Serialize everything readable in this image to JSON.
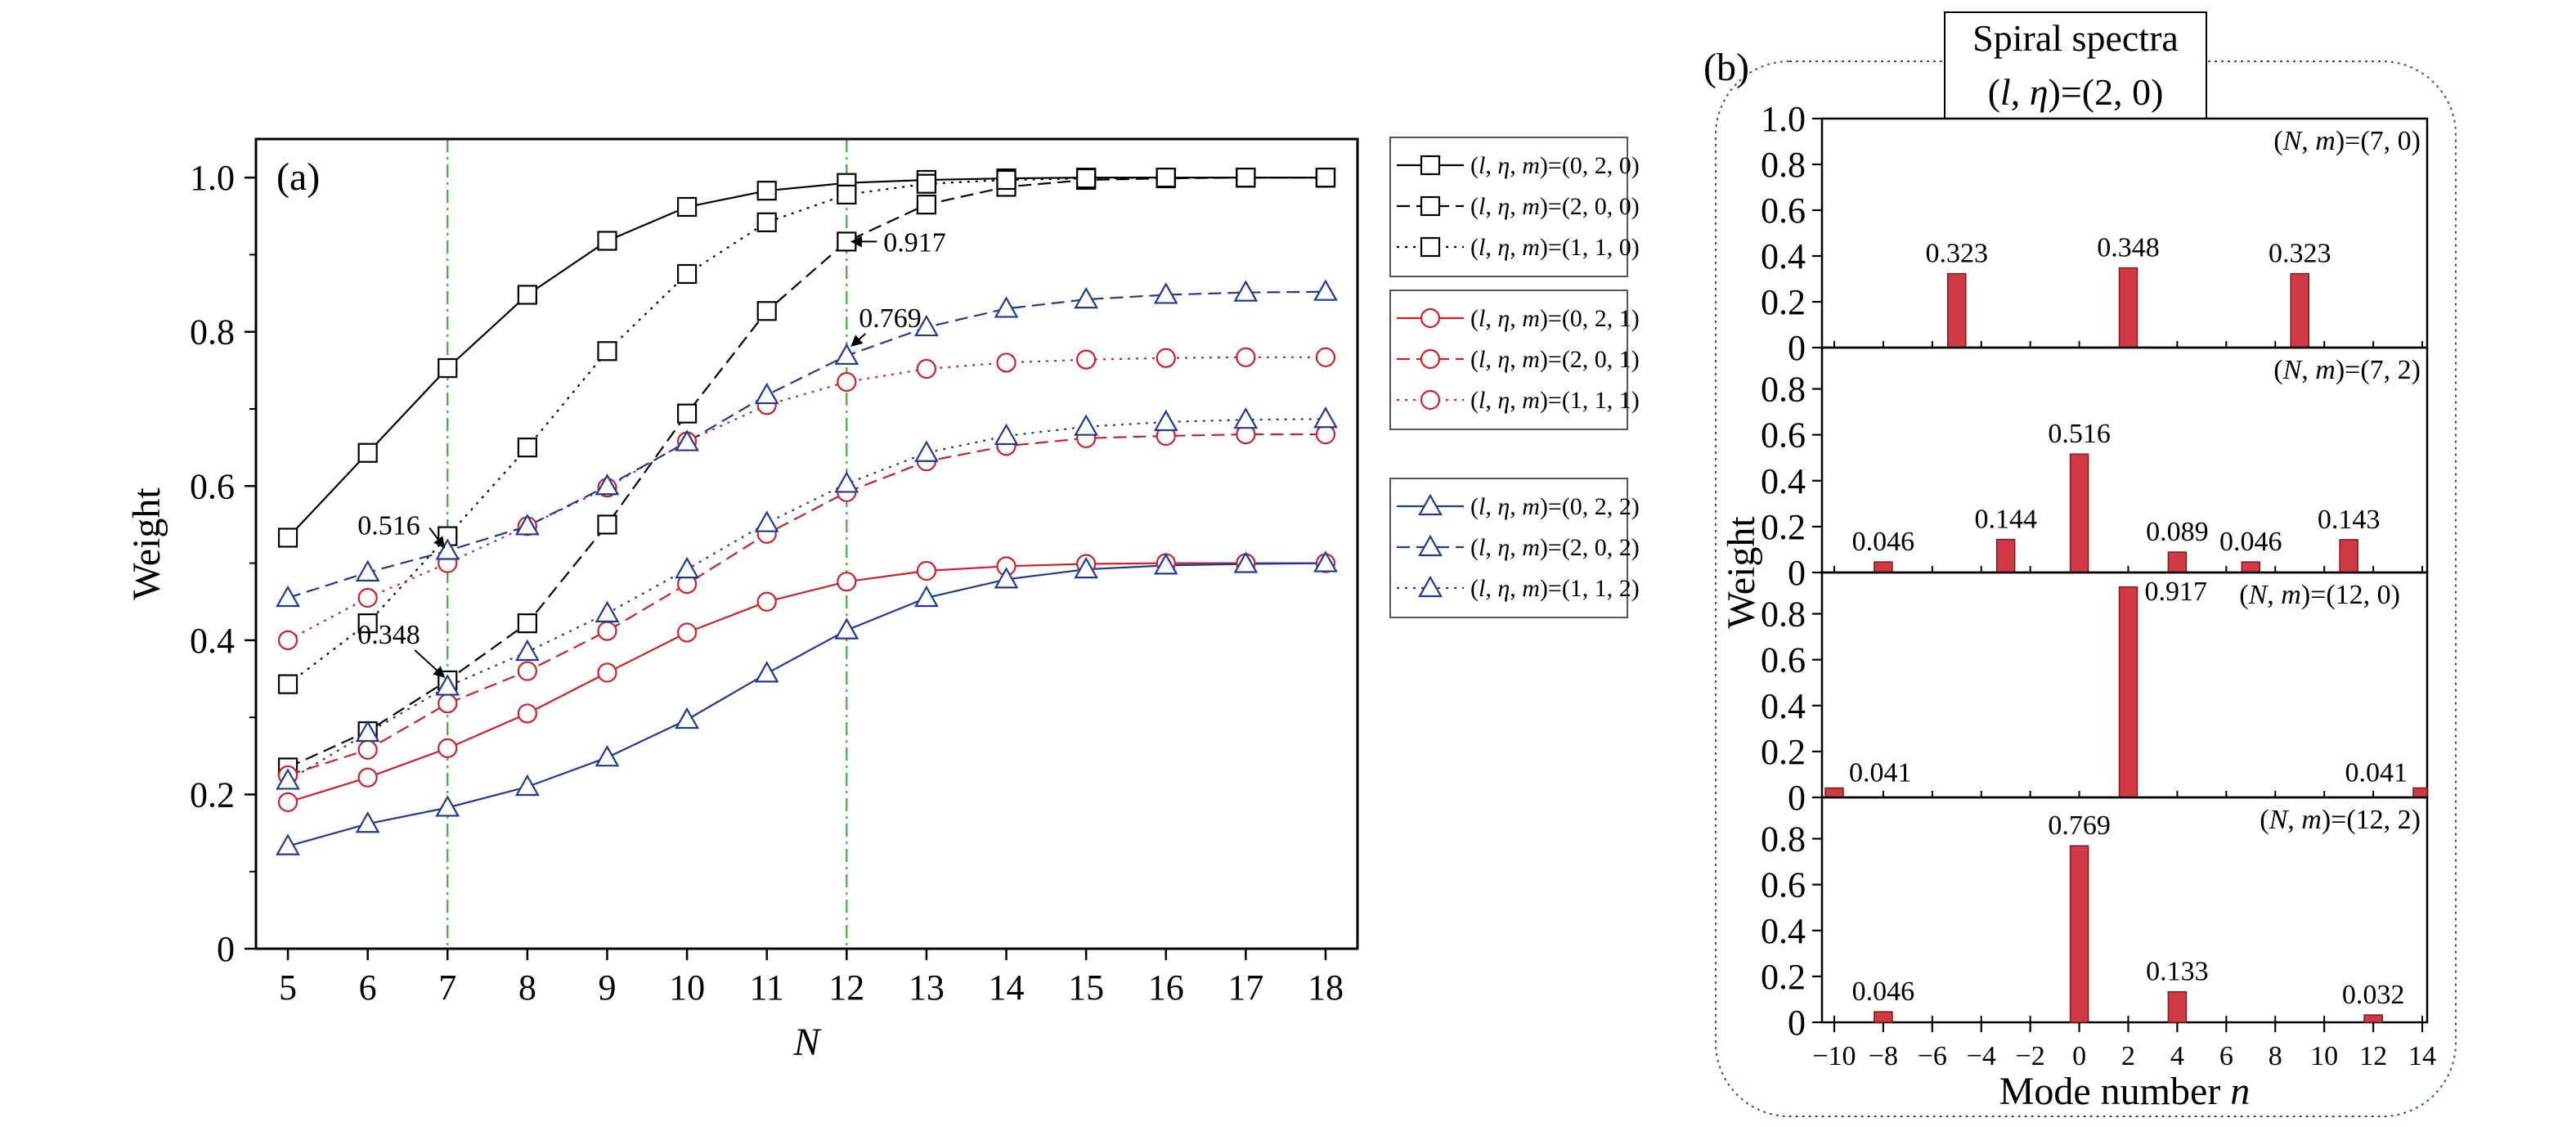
{
  "chart_data": [
    {
      "type": "line",
      "panel_label": "(a)",
      "xlabel": "N",
      "ylabel": "Weight",
      "x": [
        5,
        6,
        7,
        8,
        9,
        10,
        11,
        12,
        13,
        14,
        15,
        16,
        17,
        18
      ],
      "xlim": [
        4.6,
        18.4
      ],
      "ylim": [
        0,
        1.05
      ],
      "yticks": [
        0,
        0.2,
        0.4,
        0.6,
        0.8,
        1.0
      ],
      "yticklabels": [
        "0",
        "0.2",
        "0.4",
        "0.6",
        "0.8",
        "1.0"
      ],
      "grid": false,
      "legend_position": "right",
      "series": [
        {
          "name": "(l, η, m)=(0, 2, 0)",
          "color": "#000000",
          "dash": "solid",
          "marker": "square",
          "values": [
            0.533,
            0.643,
            0.753,
            0.848,
            0.918,
            0.962,
            0.983,
            0.993,
            0.997,
            0.999,
            1.0,
            1.0,
            1.0,
            1.0
          ]
        },
        {
          "name": "(l, η, m)=(2, 0, 0)",
          "color": "#000000",
          "dash": "dashed",
          "marker": "square",
          "values": [
            0.235,
            0.282,
            0.348,
            0.422,
            0.55,
            0.694,
            0.827,
            0.917,
            0.965,
            0.988,
            0.997,
            0.999,
            1.0,
            1.0
          ]
        },
        {
          "name": "(l, η, m)=(1, 1, 0)",
          "color": "#000000",
          "dash": "dotted",
          "marker": "square",
          "values": [
            0.343,
            0.422,
            0.535,
            0.65,
            0.775,
            0.875,
            0.942,
            0.978,
            0.992,
            0.997,
            0.999,
            1.0,
            1.0,
            1.0
          ]
        },
        {
          "name": "(l, η, m)=(0, 2, 1)",
          "color": "#d0202a",
          "dash": "solid",
          "marker": "circle",
          "values": [
            0.19,
            0.222,
            0.26,
            0.305,
            0.358,
            0.41,
            0.45,
            0.476,
            0.49,
            0.496,
            0.499,
            0.5,
            0.5,
            0.5
          ]
        },
        {
          "name": "(l, η, m)=(2, 0, 1)",
          "color": "#d0202a",
          "dash": "dashed",
          "marker": "circle",
          "values": [
            0.225,
            0.258,
            0.318,
            0.36,
            0.412,
            0.473,
            0.538,
            0.592,
            0.632,
            0.652,
            0.662,
            0.665,
            0.667,
            0.667
          ]
        },
        {
          "name": "(l, η, m)=(1, 1, 1)",
          "color": "#d0202a",
          "dash": "dotted",
          "marker": "circle",
          "values": [
            0.4,
            0.455,
            0.5,
            0.548,
            0.598,
            0.658,
            0.705,
            0.735,
            0.752,
            0.76,
            0.764,
            0.766,
            0.767,
            0.767
          ]
        },
        {
          "name": "(l, η, m)=(0, 2, 2)",
          "color": "#1f3a93",
          "dash": "solid",
          "marker": "triangle",
          "values": [
            0.133,
            0.162,
            0.183,
            0.21,
            0.248,
            0.297,
            0.357,
            0.413,
            0.455,
            0.479,
            0.492,
            0.497,
            0.499,
            0.5
          ]
        },
        {
          "name": "(l, η, m)=(2, 0, 2)",
          "color": "#1f3a93",
          "dash": "dashed",
          "marker": "triangle",
          "values": [
            0.455,
            0.488,
            0.516,
            0.548,
            0.6,
            0.657,
            0.718,
            0.769,
            0.806,
            0.83,
            0.842,
            0.848,
            0.851,
            0.852
          ]
        },
        {
          "name": "(l, η, m)=(1, 1, 2)",
          "color": "#1f3a93",
          "dash": "dotted",
          "marker": "triangle",
          "values": [
            0.218,
            0.28,
            0.34,
            0.385,
            0.435,
            0.492,
            0.552,
            0.603,
            0.643,
            0.665,
            0.677,
            0.683,
            0.686,
            0.687
          ]
        }
      ],
      "vlines": [
        7,
        12
      ],
      "annotations": [
        {
          "text": "0.516",
          "x": 7,
          "y": 0.516
        },
        {
          "text": "0.348",
          "x": 7,
          "y": 0.348
        },
        {
          "text": "0.917",
          "x": 12,
          "y": 0.917
        },
        {
          "text": "0.769",
          "x": 12,
          "y": 0.769
        }
      ]
    },
    {
      "type": "bar",
      "panel_label": "(b)",
      "title_line1": "Spiral spectra",
      "title_line2": "(l, η)=(2, 0)",
      "xlabel": "Mode number n",
      "ylabel": "Weight",
      "xlim": [
        -10.5,
        14.2
      ],
      "xticks": [
        -10,
        -8,
        -6,
        -4,
        -2,
        0,
        2,
        4,
        6,
        8,
        10,
        12,
        14
      ],
      "xticklabels": [
        "−10",
        "−8",
        "−6",
        "−4",
        "−2",
        "0",
        "2",
        "4",
        "6",
        "8",
        "10",
        "12",
        "14"
      ],
      "bar_color": "#d13a45",
      "subplots": [
        {
          "label": "(N, m)=(7, 0)",
          "ylim": [
            0,
            1.0
          ],
          "yticklabels": [
            "0",
            "0.2",
            "0.4",
            "0.6",
            "0.8",
            "1.0"
          ],
          "bars": [
            {
              "n": -5,
              "value": 0.323,
              "text": "0.323"
            },
            {
              "n": 2,
              "value": 0.348,
              "text": "0.348"
            },
            {
              "n": 9,
              "value": 0.323,
              "text": "0.323"
            }
          ]
        },
        {
          "label": "(N, m)=(7, 2)",
          "ylim": [
            0,
            0.98
          ],
          "yticklabels": [
            "0",
            "0.2",
            "0.4",
            "0.6",
            "0.8"
          ],
          "bars": [
            {
              "n": -8,
              "value": 0.046,
              "text": "0.046"
            },
            {
              "n": -3,
              "value": 0.144,
              "text": "0.144"
            },
            {
              "n": 0,
              "value": 0.516,
              "text": "0.516"
            },
            {
              "n": 4,
              "value": 0.089,
              "text": "0.089"
            },
            {
              "n": 7,
              "value": 0.046,
              "text": "0.046"
            },
            {
              "n": 11,
              "value": 0.143,
              "text": "0.143"
            }
          ]
        },
        {
          "label": "(N, m)=(12, 0)",
          "ylim": [
            0,
            0.98
          ],
          "yticklabels": [
            "0",
            "0.2",
            "0.4",
            "0.6",
            "0.8"
          ],
          "bars": [
            {
              "n": -10,
              "value": 0.041,
              "text": "0.041"
            },
            {
              "n": 2,
              "value": 0.917,
              "text": "0.917"
            },
            {
              "n": 14,
              "value": 0.041,
              "text": "0.041"
            }
          ]
        },
        {
          "label": "(N, m)=(12, 2)",
          "ylim": [
            0,
            0.98
          ],
          "yticklabels": [
            "0",
            "0.2",
            "0.4",
            "0.6",
            "0.8"
          ],
          "bars": [
            {
              "n": -8,
              "value": 0.046,
              "text": "0.046"
            },
            {
              "n": 0,
              "value": 0.769,
              "text": "0.769"
            },
            {
              "n": 4,
              "value": 0.133,
              "text": "0.133"
            },
            {
              "n": 12,
              "value": 0.032,
              "text": "0.032"
            }
          ]
        }
      ]
    }
  ]
}
